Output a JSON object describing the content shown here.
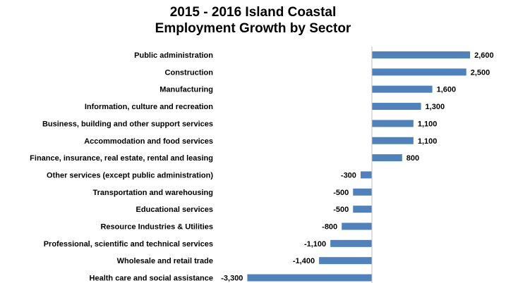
{
  "chart_data": {
    "type": "bar",
    "orientation": "horizontal",
    "title_lines": [
      "2015 - 2016 Island Coastal",
      "Employment Growth by Sector"
    ],
    "categories": [
      "Public administration",
      "Construction",
      "Manufacturing",
      "Information, culture and recreation",
      "Business, building and other support services",
      "Accommodation and food services",
      "Finance, insurance, real estate, rental and leasing",
      "Other services (except public administration)",
      "Transportation and warehousing",
      "Educational services",
      "Resource Industries & Utilities",
      "Professional, scientific and technical services",
      "Wholesale and retail trade",
      "Health care and social assistance"
    ],
    "values": [
      2600,
      2500,
      1600,
      1300,
      1100,
      1100,
      800,
      -300,
      -500,
      -500,
      -800,
      -1100,
      -1400,
      -3300
    ],
    "value_labels": [
      "2,600",
      "2,500",
      "1,600",
      "1,300",
      "1,100",
      "1,100",
      "800",
      "-300",
      "-500",
      "-500",
      "-800",
      "-1,100",
      "-1,400",
      "-3,300"
    ],
    "bar_color": "#4f81bd",
    "axis_line": true,
    "grid": false,
    "legend": "none"
  }
}
